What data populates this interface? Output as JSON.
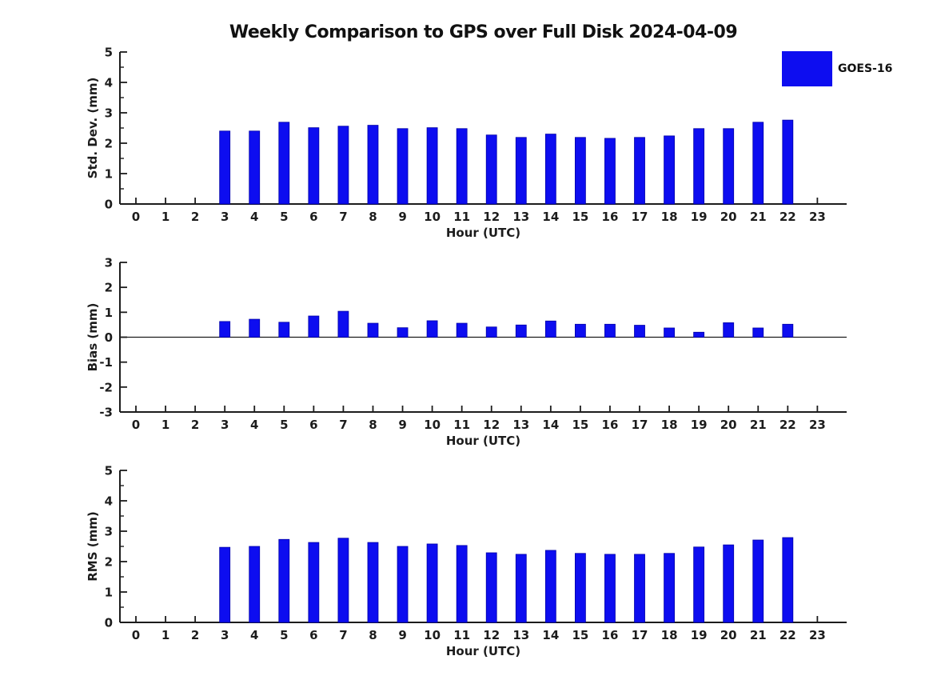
{
  "figure": {
    "title": "Weekly Comparison to GPS over Full Disk 2024-04-09",
    "legend": {
      "label": "GOES-16",
      "color": "#0D0DF0"
    },
    "bar_fill": "#0D0DF0",
    "bar_edge": "#0000A8",
    "axis_color": "#1c1c1c",
    "text_color": "#1c1c1c"
  },
  "chart_data": [
    {
      "type": "bar",
      "name": "std-dev",
      "title": "Weekly Comparison to GPS over Full Disk 2024-04-09",
      "xlabel": "Hour (UTC)",
      "ylabel": "Std. Dev. (mm)",
      "ylim": [
        0,
        5
      ],
      "yticks": [
        0,
        1,
        2,
        3,
        4,
        5
      ],
      "minor_yticks": true,
      "zero_line": false,
      "legend_entries": [
        "GOES-16"
      ],
      "categories": [
        0,
        1,
        2,
        3,
        4,
        5,
        6,
        7,
        8,
        9,
        10,
        11,
        12,
        13,
        14,
        15,
        16,
        17,
        18,
        19,
        20,
        21,
        22,
        23
      ],
      "series": [
        {
          "name": "GOES-16",
          "values": [
            null,
            null,
            null,
            2.4,
            2.4,
            2.69,
            2.51,
            2.56,
            2.59,
            2.48,
            2.51,
            2.48,
            2.27,
            2.19,
            2.3,
            2.19,
            2.16,
            2.19,
            2.24,
            2.48,
            2.48,
            2.69,
            2.76,
            null
          ]
        }
      ]
    },
    {
      "type": "bar",
      "name": "bias",
      "xlabel": "Hour (UTC)",
      "ylabel": "Bias (mm)",
      "ylim": [
        -3,
        3
      ],
      "yticks": [
        -3,
        -2,
        -1,
        0,
        1,
        2,
        3
      ],
      "minor_yticks": false,
      "zero_line": true,
      "legend_entries": [
        "GOES-16"
      ],
      "categories": [
        0,
        1,
        2,
        3,
        4,
        5,
        6,
        7,
        8,
        9,
        10,
        11,
        12,
        13,
        14,
        15,
        16,
        17,
        18,
        19,
        20,
        21,
        22,
        23
      ],
      "series": [
        {
          "name": "GOES-16",
          "values": [
            null,
            null,
            null,
            0.63,
            0.72,
            0.6,
            0.85,
            1.04,
            0.56,
            0.38,
            0.66,
            0.56,
            0.41,
            0.49,
            0.65,
            0.52,
            0.52,
            0.48,
            0.37,
            0.2,
            0.58,
            0.37,
            0.52,
            null
          ]
        }
      ]
    },
    {
      "type": "bar",
      "name": "rms",
      "xlabel": "Hour (UTC)",
      "ylabel": "RMS (mm)",
      "ylim": [
        0,
        5
      ],
      "yticks": [
        0,
        1,
        2,
        3,
        4,
        5
      ],
      "minor_yticks": true,
      "zero_line": false,
      "legend_entries": [
        "GOES-16"
      ],
      "categories": [
        0,
        1,
        2,
        3,
        4,
        5,
        6,
        7,
        8,
        9,
        10,
        11,
        12,
        13,
        14,
        15,
        16,
        17,
        18,
        19,
        20,
        21,
        22,
        23
      ],
      "series": [
        {
          "name": "GOES-16",
          "values": [
            null,
            null,
            null,
            2.47,
            2.5,
            2.73,
            2.63,
            2.77,
            2.63,
            2.5,
            2.58,
            2.53,
            2.29,
            2.24,
            2.37,
            2.27,
            2.24,
            2.24,
            2.27,
            2.48,
            2.55,
            2.71,
            2.79,
            null
          ]
        }
      ]
    }
  ]
}
